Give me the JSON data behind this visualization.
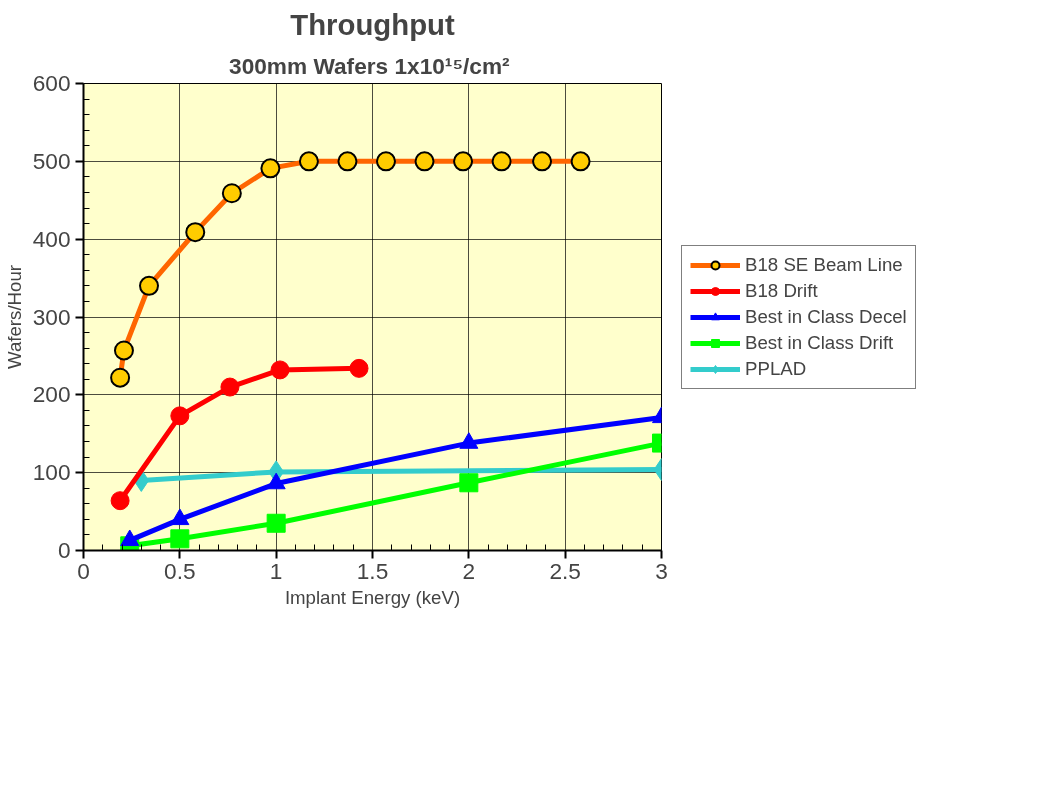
{
  "chart_data": {
    "type": "line",
    "title": "Throughput",
    "subtitle": "300mm Wafers  1x10¹⁵/cm²",
    "xlabel": "Implant Energy (keV)",
    "ylabel": "Wafers/Hour",
    "xlim": [
      0,
      3
    ],
    "xticks": [
      0,
      0.5,
      1,
      1.5,
      2,
      2.5,
      3
    ],
    "ylim": [
      0,
      600
    ],
    "yticks": [
      0,
      100,
      200,
      300,
      400,
      500,
      600
    ],
    "grid": true,
    "legend": "right",
    "series": [
      {
        "name": "B18 SE Beam Line",
        "color": "#ff6600",
        "marker": "circle",
        "x": [
          0.19,
          0.21,
          0.34,
          0.58,
          0.77,
          0.97,
          1.17,
          1.37,
          1.57,
          1.77,
          1.97,
          2.17,
          2.38,
          2.58
        ],
        "values": [
          222,
          257,
          340,
          409,
          459,
          491,
          500,
          500,
          500,
          500,
          500,
          500,
          500,
          500
        ]
      },
      {
        "name": "B18 Drift",
        "color": "#ff0000",
        "marker": "circle",
        "x": [
          0.19,
          0.5,
          0.76,
          1.02,
          1.43
        ],
        "values": [
          64,
          173,
          210,
          232,
          234
        ]
      },
      {
        "name": "Best in Class Decel",
        "color": "#0000ff",
        "marker": "triangle",
        "x": [
          0.24,
          0.5,
          1.0,
          2.0,
          3.0
        ],
        "values": [
          13,
          40,
          86,
          138,
          171
        ]
      },
      {
        "name": "Best in Class Drift",
        "color": "#00ff00",
        "marker": "square",
        "x": [
          0.24,
          0.5,
          1.0,
          2.0,
          3.0
        ],
        "values": [
          6,
          15,
          35,
          87,
          138
        ]
      },
      {
        "name": "PPLAD",
        "color": "#33cccc",
        "marker": "diamond",
        "x": [
          0.3,
          1.0,
          3.0
        ],
        "values": [
          90,
          101,
          104
        ]
      }
    ]
  }
}
